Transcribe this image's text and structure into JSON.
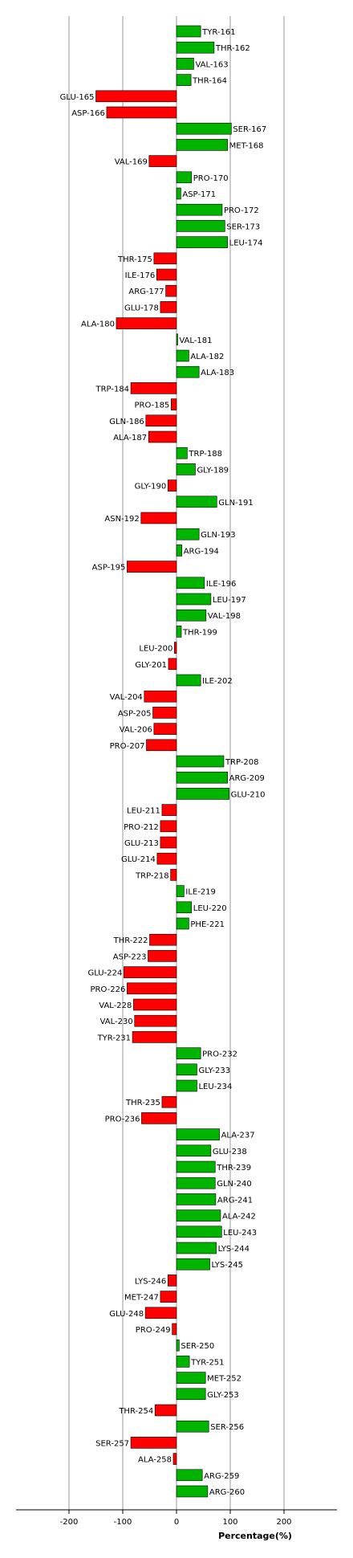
{
  "chart_data": {
    "type": "bar",
    "orientation": "horizontal",
    "xlabel": "Percentage(%)",
    "ylabel": "",
    "xlim": [
      -300,
      300
    ],
    "xticks": [
      -200,
      -100,
      0,
      100,
      200
    ],
    "xtick_labels": [
      "-200",
      "-100",
      "0",
      "100",
      "200"
    ],
    "grid": true,
    "colors": {
      "positive": "#00b400",
      "negative": "#ff0000",
      "grid": "#999999"
    },
    "categories": [
      "TYR-161",
      "THR-162",
      "VAL-163",
      "THR-164",
      "GLU-165",
      "ASP-166",
      "SER-167",
      "MET-168",
      "VAL-169",
      "PRO-170",
      "ASP-171",
      "PRO-172",
      "SER-173",
      "LEU-174",
      "THR-175",
      "ILE-176",
      "ARG-177",
      "GLU-178",
      "ALA-180",
      "VAL-181",
      "ALA-182",
      "ALA-183",
      "TRP-184",
      "PRO-185",
      "GLN-186",
      "ALA-187",
      "TRP-188",
      "GLY-189",
      "GLY-190",
      "GLN-191",
      "ASN-192",
      "GLN-193",
      "ARG-194",
      "ASP-195",
      "ILE-196",
      "LEU-197",
      "VAL-198",
      "THR-199",
      "LEU-200",
      "GLY-201",
      "ILE-202",
      "VAL-204",
      "ASP-205",
      "VAL-206",
      "PRO-207",
      "TRP-208",
      "ARG-209",
      "GLU-210",
      "LEU-211",
      "PRO-212",
      "GLU-213",
      "GLU-214",
      "TRP-218",
      "ILE-219",
      "LEU-220",
      "PHE-221",
      "THR-222",
      "ASP-223",
      "GLU-224",
      "PRO-226",
      "VAL-228",
      "VAL-230",
      "TYR-231",
      "PRO-232",
      "GLY-233",
      "LEU-234",
      "THR-235",
      "PRO-236",
      "ALA-237",
      "GLU-238",
      "THR-239",
      "GLN-240",
      "ARG-241",
      "ALA-242",
      "LEU-243",
      "LYS-244",
      "LYS-245",
      "LYS-246",
      "MET-247",
      "GLU-248",
      "PRO-249",
      "SER-250",
      "TYR-251",
      "MET-252",
      "GLY-253",
      "THR-254",
      "SER-256",
      "SER-257",
      "ALA-258",
      "ARG-259",
      "ARG-260"
    ],
    "values": [
      45,
      70,
      32,
      27,
      -150,
      -130,
      102,
      95,
      -51,
      28,
      8,
      85,
      90,
      95,
      -42,
      -37,
      -20,
      -30,
      -112,
      2,
      23,
      42,
      -85,
      -10,
      -57,
      -52,
      20,
      35,
      -16,
      75,
      -66,
      42,
      10,
      -92,
      52,
      64,
      55,
      9,
      -4,
      -15,
      45,
      -60,
      -44,
      -42,
      -56,
      88,
      95,
      98,
      -27,
      -30,
      -30,
      -36,
      -11,
      14,
      28,
      23,
      -50,
      -53,
      -98,
      -92,
      -80,
      -78,
      -82,
      45,
      38,
      38,
      -27,
      -65,
      80,
      64,
      72,
      72,
      73,
      82,
      84,
      74,
      62,
      -16,
      -30,
      -58,
      -8,
      5,
      24,
      54,
      54,
      -40,
      60,
      -85,
      -6,
      48,
      58
    ]
  }
}
